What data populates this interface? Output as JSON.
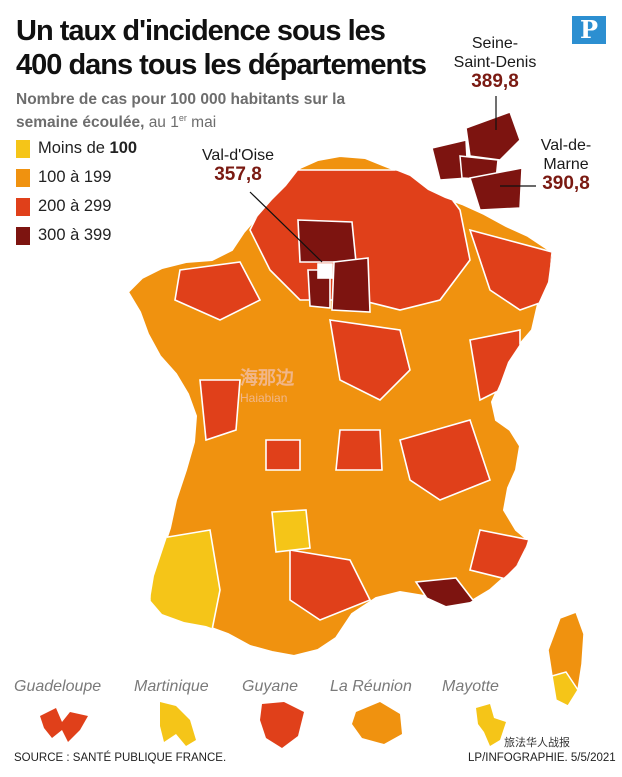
{
  "header": {
    "title": "Un taux d'incidence sous les 400 dans tous les départements",
    "subtitle_main": "Nombre de cas pour 100 000 habitants sur la semaine écoulée,",
    "subtitle_date": "au 1",
    "subtitle_sup": "er",
    "subtitle_end": " mai",
    "logo_letter": "P"
  },
  "legend": {
    "items": [
      {
        "pre": "Moins de ",
        "bold": "100",
        "color": "#f5c518"
      },
      {
        "pre": "100 à 199",
        "bold": "",
        "color": "#f0920f"
      },
      {
        "pre": "200 à 299",
        "bold": "",
        "color": "#e0401a"
      },
      {
        "pre": "300 à 399",
        "bold": "",
        "color": "#7d1410"
      }
    ]
  },
  "callouts": {
    "val_oise": {
      "name": "Val-d'Oise",
      "value": "357,8"
    },
    "seine_st_denis": {
      "name_1": "Seine-",
      "name_2": "Saint-Denis",
      "value": "389,8"
    },
    "val_de_marne": {
      "name_1": "Val-de-",
      "name_2": "Marne",
      "value": "390,8"
    }
  },
  "overseas": [
    {
      "name": "Guadeloupe",
      "level": "200 à 299"
    },
    {
      "name": "Martinique",
      "level": "Moins de 100"
    },
    {
      "name": "Guyane",
      "level": "200 à 299"
    },
    {
      "name": "La Réunion",
      "level": "100 à 199"
    },
    {
      "name": "Mayotte",
      "level": "Moins de 100"
    }
  ],
  "footer": {
    "source": "SOURCE : SANTÉ PUBLIQUE FRANCE.",
    "credit": "LP/INFOGRAPHIE. 5/5/2021",
    "wechat": "旅法华人战报"
  },
  "watermark": {
    "cn": "海那边",
    "en": "Haiabian"
  },
  "colors": {
    "lt100": "#f5c518",
    "r100_199": "#f0920f",
    "r200_299": "#e0401a",
    "r300_399": "#7d1410",
    "border": "#ffffff"
  }
}
